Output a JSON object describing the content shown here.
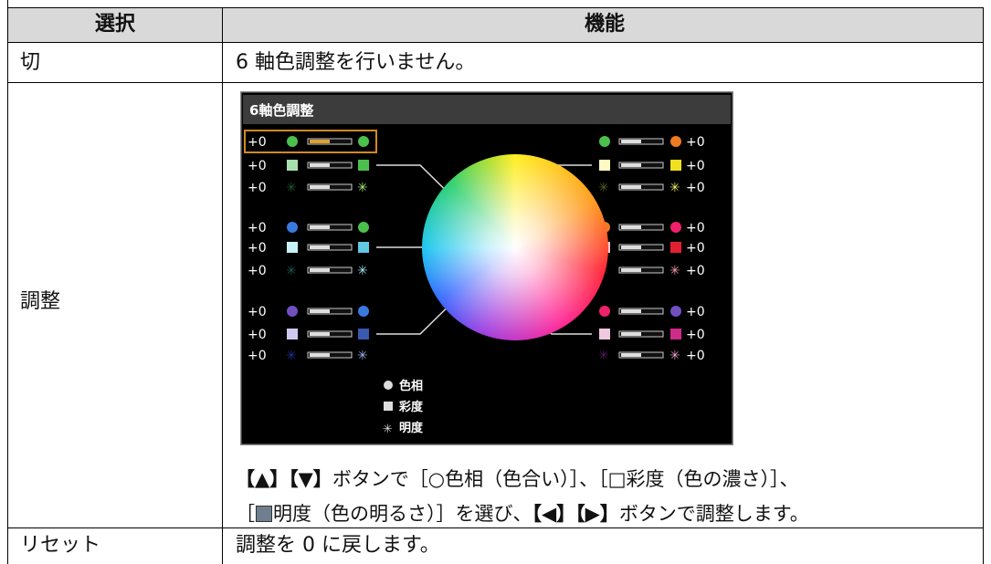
{
  "table": {
    "headers": [
      "選択",
      "機能"
    ],
    "rows": [
      {
        "select": "切",
        "function": "6 軸色調整を行いません。"
      },
      {
        "select": "調整"
      },
      {
        "select": "リセット",
        "function": "調整を 0 に戻します。"
      }
    ]
  },
  "screen": {
    "title": "6軸色調整",
    "left_values": [
      "+0",
      "+0",
      "+0",
      "+0",
      "+0",
      "+0",
      "+0",
      "+0",
      "+0"
    ],
    "right_values": [
      "+0",
      "+0",
      "+0",
      "+0",
      "+0",
      "+0",
      "+0",
      "+0",
      "+0"
    ],
    "legend": [
      "色相",
      "彩度",
      "明度"
    ]
  },
  "instruction": {
    "line1": [
      "【▲】【▼】",
      "ボタンで［○色相（色合い）］、［□彩度（色の濃さ）］、"
    ],
    "line2": [
      "［",
      "明度（色の明るさ）］を選び、",
      "【◀】【▶】",
      "ボタンで調整します。"
    ]
  }
}
